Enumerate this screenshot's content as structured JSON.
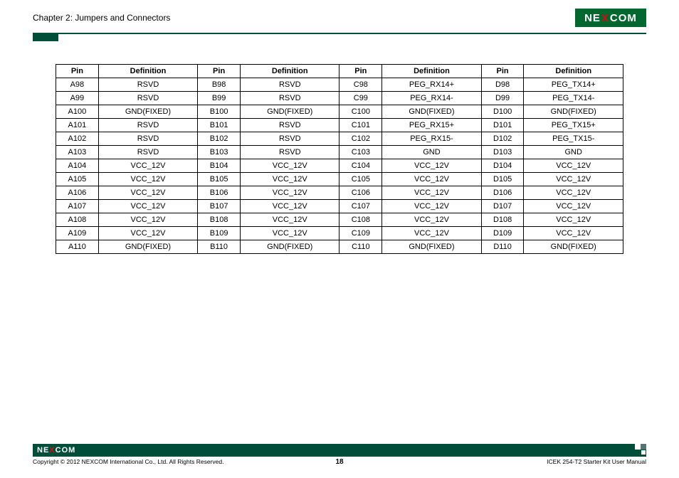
{
  "header": {
    "chapter": "Chapter 2: Jumpers and Connectors",
    "logo_pre": "NE",
    "logo_x": "X",
    "logo_post": "COM"
  },
  "table": {
    "headers": [
      "Pin",
      "Definition",
      "Pin",
      "Definition",
      "Pin",
      "Definition",
      "Pin",
      "Definition"
    ],
    "rows": [
      [
        "A98",
        "RSVD",
        "B98",
        "RSVD",
        "C98",
        "PEG_RX14+",
        "D98",
        "PEG_TX14+"
      ],
      [
        "A99",
        "RSVD",
        "B99",
        "RSVD",
        "C99",
        "PEG_RX14-",
        "D99",
        "PEG_TX14-"
      ],
      [
        "A100",
        "GND(FIXED)",
        "B100",
        "GND(FIXED)",
        "C100",
        "GND(FIXED)",
        "D100",
        "GND(FIXED)"
      ],
      [
        "A101",
        "RSVD",
        "B101",
        "RSVD",
        "C101",
        "PEG_RX15+",
        "D101",
        "PEG_TX15+"
      ],
      [
        "A102",
        "RSVD",
        "B102",
        "RSVD",
        "C102",
        "PEG_RX15-",
        "D102",
        "PEG_TX15-"
      ],
      [
        "A103",
        "RSVD",
        "B103",
        "RSVD",
        "C103",
        "GND",
        "D103",
        "GND"
      ],
      [
        "A104",
        "VCC_12V",
        "B104",
        "VCC_12V",
        "C104",
        "VCC_12V",
        "D104",
        "VCC_12V"
      ],
      [
        "A105",
        "VCC_12V",
        "B105",
        "VCC_12V",
        "C105",
        "VCC_12V",
        "D105",
        "VCC_12V"
      ],
      [
        "A106",
        "VCC_12V",
        "B106",
        "VCC_12V",
        "C106",
        "VCC_12V",
        "D106",
        "VCC_12V"
      ],
      [
        "A107",
        "VCC_12V",
        "B107",
        "VCC_12V",
        "C107",
        "VCC_12V",
        "D107",
        "VCC_12V"
      ],
      [
        "A108",
        "VCC_12V",
        "B108",
        "VCC_12V",
        "C108",
        "VCC_12V",
        "D108",
        "VCC_12V"
      ],
      [
        "A109",
        "VCC_12V",
        "B109",
        "VCC_12V",
        "C109",
        "VCC_12V",
        "D109",
        "VCC_12V"
      ],
      [
        "A110",
        "GND(FIXED)",
        "B110",
        "GND(FIXED)",
        "C110",
        "GND(FIXED)",
        "D110",
        "GND(FIXED)"
      ]
    ]
  },
  "footer": {
    "logo_pre": "NE",
    "logo_x": "X",
    "logo_post": "COM",
    "copyright": "Copyright © 2012 NEXCOM International Co., Ltd. All Rights Reserved.",
    "page": "18",
    "manual": "ICEK 254-T2 Starter Kit User Manual"
  }
}
